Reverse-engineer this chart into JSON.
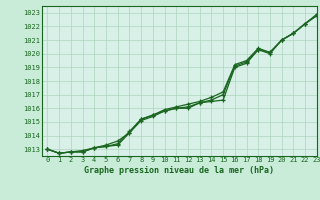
{
  "title": "Graphe pression niveau de la mer (hPa)",
  "background_color": "#c8ecd8",
  "plot_bg_color": "#d8f0e8",
  "grid_color": "#aed4be",
  "line_color": "#1a6620",
  "xlim": [
    -0.5,
    23
  ],
  "ylim": [
    1012.5,
    1023.5
  ],
  "xticks": [
    0,
    1,
    2,
    3,
    4,
    5,
    6,
    7,
    8,
    9,
    10,
    11,
    12,
    13,
    14,
    15,
    16,
    17,
    18,
    19,
    20,
    21,
    22,
    23
  ],
  "yticks": [
    1013,
    1014,
    1015,
    1016,
    1017,
    1018,
    1019,
    1020,
    1021,
    1022,
    1023
  ],
  "series1": [
    1013.0,
    1012.7,
    1012.8,
    1012.8,
    1013.1,
    1013.2,
    1013.3,
    1014.2,
    1015.1,
    1015.4,
    1015.8,
    1016.0,
    1016.0,
    1016.4,
    1016.5,
    1016.6,
    1019.0,
    1019.3,
    1020.3,
    1020.0,
    1021.0,
    1021.5,
    1022.2,
    1022.8
  ],
  "series2": [
    1013.0,
    1012.7,
    1012.8,
    1012.8,
    1013.1,
    1013.2,
    1013.4,
    1014.3,
    1015.2,
    1015.5,
    1015.8,
    1016.0,
    1016.1,
    1016.4,
    1016.6,
    1017.0,
    1019.1,
    1019.4,
    1020.3,
    1020.1,
    1021.0,
    1021.5,
    1022.2,
    1022.8
  ],
  "series3": [
    1013.0,
    1012.7,
    1012.8,
    1012.9,
    1013.1,
    1013.3,
    1013.6,
    1014.2,
    1015.2,
    1015.5,
    1015.9,
    1016.1,
    1016.3,
    1016.5,
    1016.8,
    1017.2,
    1019.2,
    1019.5,
    1020.4,
    1020.1,
    1021.0,
    1021.5,
    1022.2,
    1022.9
  ]
}
